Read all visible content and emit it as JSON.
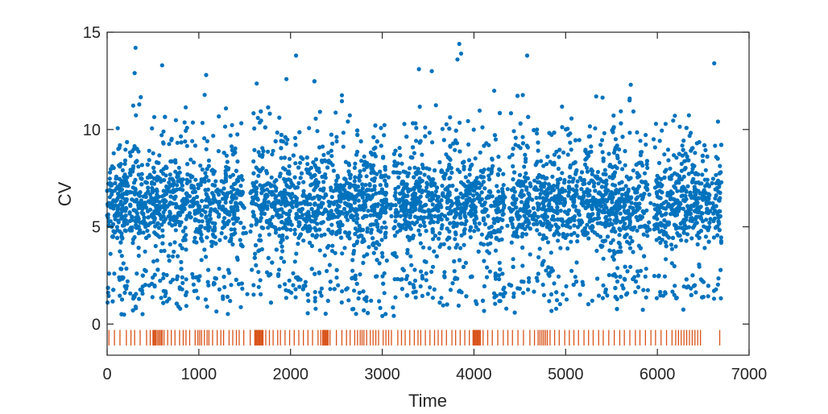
{
  "chart_data": {
    "type": "scatter",
    "title": "",
    "xlabel": "Time",
    "ylabel": "CV",
    "xlim": [
      0,
      7000
    ],
    "ylim": [
      -1.6,
      15
    ],
    "xticks": [
      0,
      1000,
      2000,
      3000,
      4000,
      5000,
      6000,
      7000
    ],
    "yticks": [
      0,
      5,
      10,
      15
    ],
    "xtick_labels": [
      "0",
      "1000",
      "2000",
      "3000",
      "4000",
      "5000",
      "6000",
      "7000"
    ],
    "ytick_labels": [
      "0",
      "5",
      "10",
      "15"
    ],
    "grid": false,
    "legend": "none",
    "point_color": "#0072BD",
    "event_color": "#D95319",
    "event_y_range": [
      -1.1,
      -0.3
    ],
    "x_max_points": 6700,
    "highlight_points": [
      {
        "x": 310,
        "y": 14.2
      },
      {
        "x": 3840,
        "y": 14.4
      },
      {
        "x": 2060,
        "y": 13.8
      },
      {
        "x": 4580,
        "y": 13.8
      },
      {
        "x": 6620,
        "y": 13.4
      },
      {
        "x": 600,
        "y": 13.3
      },
      {
        "x": 3400,
        "y": 13.1
      },
      {
        "x": 3540,
        "y": 13.0
      },
      {
        "x": 300,
        "y": 12.9
      },
      {
        "x": 1080,
        "y": 12.8
      },
      {
        "x": 5710,
        "y": 12.3
      },
      {
        "x": 3820,
        "y": 13.6
      },
      {
        "x": 3860,
        "y": 13.9
      }
    ],
    "events": [
      20,
      80,
      140,
      210,
      260,
      300,
      360,
      430,
      470,
      500,
      510,
      520,
      530,
      545,
      560,
      575,
      590,
      600,
      620,
      660,
      700,
      740,
      790,
      830,
      860,
      900,
      960,
      990,
      1010,
      1030,
      1060,
      1090,
      1110,
      1150,
      1200,
      1240,
      1270,
      1330,
      1370,
      1410,
      1440,
      1490,
      1560,
      1610,
      1620,
      1630,
      1640,
      1650,
      1660,
      1670,
      1680,
      1690,
      1700,
      1730,
      1770,
      1810,
      1860,
      1890,
      1940,
      1990,
      2040,
      2090,
      2140,
      2190,
      2240,
      2300,
      2330,
      2350,
      2360,
      2370,
      2380,
      2390,
      2400,
      2410,
      2430,
      2500,
      2560,
      2610,
      2650,
      2700,
      2730,
      2760,
      2780,
      2800,
      2830,
      2870,
      2900,
      2930,
      2960,
      3010,
      3040,
      3070,
      3100,
      3170,
      3210,
      3250,
      3300,
      3350,
      3390,
      3420,
      3470,
      3520,
      3570,
      3610,
      3650,
      3700,
      3760,
      3800,
      3850,
      3900,
      3950,
      3990,
      4000,
      4010,
      4020,
      4030,
      4040,
      4050,
      4060,
      4070,
      4100,
      4150,
      4200,
      4260,
      4320,
      4370,
      4420,
      4480,
      4540,
      4610,
      4660,
      4700,
      4720,
      4740,
      4760,
      4780,
      4800,
      4830,
      4880,
      4930,
      4990,
      5040,
      5090,
      5140,
      5200,
      5250,
      5300,
      5360,
      5410,
      5470,
      5530,
      5590,
      5640,
      5700,
      5760,
      5810,
      5870,
      5930,
      5980,
      6040,
      6100,
      6160,
      6200,
      6230,
      6260,
      6290,
      6320,
      6350,
      6380,
      6410,
      6440,
      6470,
      6680
    ]
  }
}
